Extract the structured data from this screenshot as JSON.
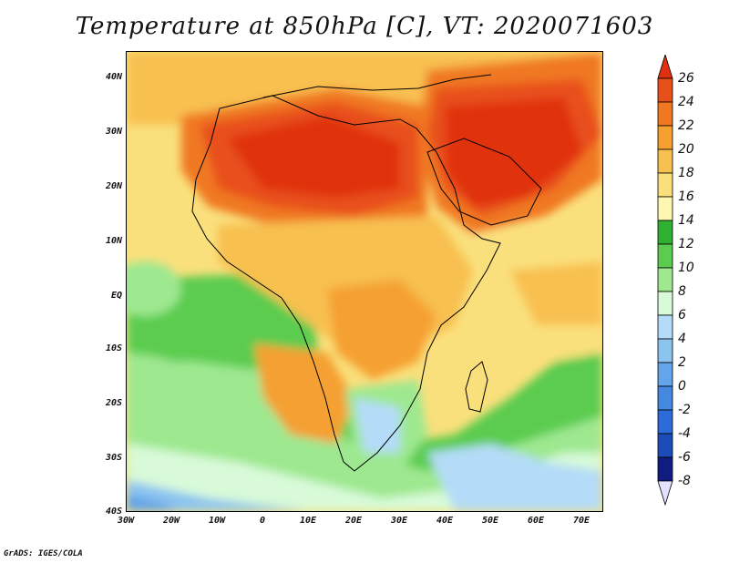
{
  "title": "Temperature at 850hPa [C], VT: 2020071603",
  "credit": "GrADS: IGES/COLA",
  "map": {
    "lat_labels": [
      "40N",
      "30N",
      "20N",
      "10N",
      "EQ",
      "10S",
      "20S",
      "30S",
      "40S"
    ],
    "lon_labels": [
      "30W",
      "20W",
      "10W",
      "0",
      "10E",
      "20E",
      "30E",
      "40E",
      "50E",
      "60E",
      "70E"
    ]
  },
  "colorbar": {
    "labels": [
      "26",
      "24",
      "22",
      "20",
      "18",
      "16",
      "14",
      "12",
      "10",
      "8",
      "6",
      "4",
      "2",
      "0",
      "-2",
      "-4",
      "-6",
      "-8"
    ],
    "colors": [
      "#e03010",
      "#e8501a",
      "#f07820",
      "#f5a030",
      "#f8c050",
      "#fae07c",
      "#fcf6b0",
      "#30b030",
      "#5ccc50",
      "#9ee890",
      "#d8fad8",
      "#b4dcf8",
      "#8cc4f0",
      "#64a4ea",
      "#4488e0",
      "#2c6cd8",
      "#1c4cb8",
      "#101c80",
      "#e2e2ff"
    ]
  }
}
